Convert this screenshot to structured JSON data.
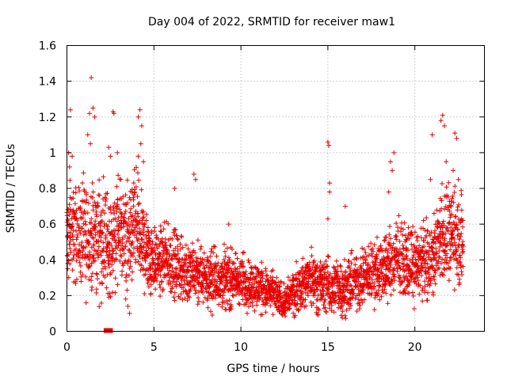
{
  "chart_data": {
    "type": "scatter",
    "title": "Day 004 of 2022, SRMTID for receiver maw1",
    "xlabel": "GPS time / hours",
    "ylabel": "SRMTID / TECUs",
    "xlim": [
      0,
      24
    ],
    "ylim": [
      0,
      1.6
    ],
    "x_ticks": [
      0,
      5,
      10,
      15,
      20
    ],
    "x_tick_labels": [
      "0",
      "5",
      "10",
      "15",
      "20"
    ],
    "y_ticks": [
      0,
      0.2,
      0.4,
      0.6,
      0.8,
      1.0,
      1.2,
      1.4,
      1.6
    ],
    "y_tick_labels": [
      "0",
      "0.2",
      "0.4",
      "0.6",
      "0.8",
      "1",
      "1.2",
      "1.4",
      "1.6"
    ],
    "grid": true,
    "marker": "+",
    "color": "#e80000",
    "series": [
      {
        "name": "SRMTID",
        "envelope": [
          {
            "x": 0.0,
            "median": 0.55,
            "spread": 0.22
          },
          {
            "x": 0.5,
            "median": 0.55,
            "spread": 0.22
          },
          {
            "x": 1.0,
            "median": 0.52,
            "spread": 0.22
          },
          {
            "x": 1.5,
            "median": 0.5,
            "spread": 0.22
          },
          {
            "x": 2.0,
            "median": 0.52,
            "spread": 0.25
          },
          {
            "x": 2.5,
            "median": 0.48,
            "spread": 0.22
          },
          {
            "x": 3.0,
            "median": 0.55,
            "spread": 0.25
          },
          {
            "x": 3.5,
            "median": 0.5,
            "spread": 0.22
          },
          {
            "x": 4.0,
            "median": 0.6,
            "spread": 0.25
          },
          {
            "x": 4.5,
            "median": 0.45,
            "spread": 0.18
          },
          {
            "x": 5.0,
            "median": 0.4,
            "spread": 0.15
          },
          {
            "x": 6.0,
            "median": 0.38,
            "spread": 0.15
          },
          {
            "x": 7.0,
            "median": 0.32,
            "spread": 0.14
          },
          {
            "x": 8.0,
            "median": 0.3,
            "spread": 0.13
          },
          {
            "x": 9.0,
            "median": 0.3,
            "spread": 0.13
          },
          {
            "x": 10.0,
            "median": 0.28,
            "spread": 0.12
          },
          {
            "x": 11.0,
            "median": 0.25,
            "spread": 0.11
          },
          {
            "x": 12.0,
            "median": 0.2,
            "spread": 0.09
          },
          {
            "x": 12.5,
            "median": 0.16,
            "spread": 0.07
          },
          {
            "x": 13.0,
            "median": 0.22,
            "spread": 0.1
          },
          {
            "x": 14.0,
            "median": 0.3,
            "spread": 0.12
          },
          {
            "x": 15.0,
            "median": 0.25,
            "spread": 0.12
          },
          {
            "x": 16.0,
            "median": 0.25,
            "spread": 0.12
          },
          {
            "x": 17.0,
            "median": 0.3,
            "spread": 0.13
          },
          {
            "x": 18.0,
            "median": 0.35,
            "spread": 0.14
          },
          {
            "x": 19.0,
            "median": 0.4,
            "spread": 0.16
          },
          {
            "x": 20.0,
            "median": 0.38,
            "spread": 0.15
          },
          {
            "x": 21.0,
            "median": 0.4,
            "spread": 0.17
          },
          {
            "x": 21.5,
            "median": 0.55,
            "spread": 0.22
          },
          {
            "x": 22.0,
            "median": 0.55,
            "spread": 0.22
          },
          {
            "x": 22.8,
            "median": 0.5,
            "spread": 0.2
          }
        ],
        "outliers": [
          {
            "x": 0.2,
            "y": 1.24
          },
          {
            "x": 0.1,
            "y": 1.0
          },
          {
            "x": 0.3,
            "y": 0.98
          },
          {
            "x": 0.15,
            "y": 0.92
          },
          {
            "x": 1.4,
            "y": 1.42
          },
          {
            "x": 1.3,
            "y": 1.22
          },
          {
            "x": 1.5,
            "y": 1.25
          },
          {
            "x": 1.6,
            "y": 1.2
          },
          {
            "x": 1.2,
            "y": 1.1
          },
          {
            "x": 1.35,
            "y": 1.05
          },
          {
            "x": 2.4,
            "y": 1.03
          },
          {
            "x": 2.5,
            "y": 0.98
          },
          {
            "x": 2.65,
            "y": 1.23
          },
          {
            "x": 2.7,
            "y": 1.22
          },
          {
            "x": 2.9,
            "y": 1.0
          },
          {
            "x": 3.1,
            "y": 0.85
          },
          {
            "x": 4.2,
            "y": 1.24
          },
          {
            "x": 4.1,
            "y": 1.2
          },
          {
            "x": 4.3,
            "y": 1.15
          },
          {
            "x": 4.25,
            "y": 1.05
          },
          {
            "x": 4.1,
            "y": 0.98
          },
          {
            "x": 4.4,
            "y": 0.95
          },
          {
            "x": 3.5,
            "y": 0.14
          },
          {
            "x": 3.6,
            "y": 0.1
          },
          {
            "x": 7.3,
            "y": 0.88
          },
          {
            "x": 7.4,
            "y": 0.85
          },
          {
            "x": 6.2,
            "y": 0.8
          },
          {
            "x": 9.3,
            "y": 0.6
          },
          {
            "x": 15.0,
            "y": 1.06
          },
          {
            "x": 15.05,
            "y": 1.04
          },
          {
            "x": 15.1,
            "y": 0.83
          },
          {
            "x": 15.1,
            "y": 0.78
          },
          {
            "x": 15.0,
            "y": 0.63
          },
          {
            "x": 16.0,
            "y": 0.7
          },
          {
            "x": 18.8,
            "y": 1.0
          },
          {
            "x": 18.6,
            "y": 0.95
          },
          {
            "x": 18.7,
            "y": 0.9
          },
          {
            "x": 18.5,
            "y": 0.78
          },
          {
            "x": 20.9,
            "y": 0.85
          },
          {
            "x": 21.0,
            "y": 1.1
          },
          {
            "x": 21.6,
            "y": 1.21
          },
          {
            "x": 21.5,
            "y": 1.18
          },
          {
            "x": 21.7,
            "y": 1.15
          },
          {
            "x": 21.8,
            "y": 0.95
          },
          {
            "x": 22.3,
            "y": 1.11
          },
          {
            "x": 22.4,
            "y": 1.08
          },
          {
            "x": 22.2,
            "y": 0.9
          },
          {
            "x": 22.5,
            "y": 0.85
          },
          {
            "x": 0.05,
            "y": 0.35
          },
          {
            "x": 0.1,
            "y": 0.3
          },
          {
            "x": 1.1,
            "y": 0.16
          }
        ],
        "data_gaps": [
          {
            "x": 2.25,
            "y": 0
          },
          {
            "x": 2.5,
            "y": 0
          }
        ]
      }
    ]
  }
}
